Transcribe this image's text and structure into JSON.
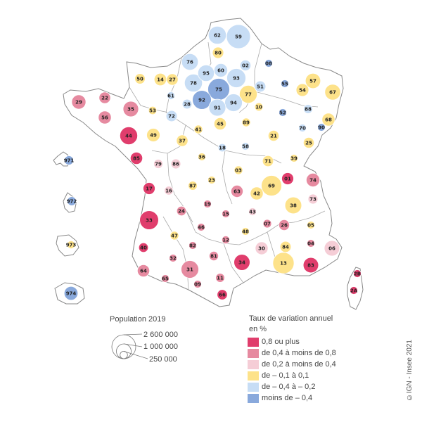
{
  "colors": {
    "c1": "#e03d6c",
    "c2": "#e68aa0",
    "c3": "#f5cdd6",
    "c4": "#fde28a",
    "c5": "#c7ddf5",
    "c6": "#89a9dc",
    "outline": "#888888"
  },
  "chart_data": {
    "type": "proportional-symbol-map",
    "departments": [
      {
        "code": "59",
        "cls": "c5",
        "pop": 2600000
      },
      {
        "code": "62",
        "cls": "c5",
        "pop": 1460000
      },
      {
        "code": "80",
        "cls": "c4",
        "pop": 570000
      },
      {
        "code": "76",
        "cls": "c5",
        "pop": 1250000
      },
      {
        "code": "02",
        "cls": "c5",
        "pop": 530000
      },
      {
        "code": "08",
        "cls": "c6",
        "pop": 270000
      },
      {
        "code": "60",
        "cls": "c5",
        "pop": 825000
      },
      {
        "code": "95",
        "cls": "c5",
        "pop": 1240000
      },
      {
        "code": "93",
        "cls": "c5",
        "pop": 1650000
      },
      {
        "code": "50",
        "cls": "c4",
        "pop": 495000
      },
      {
        "code": "14",
        "cls": "c4",
        "pop": 695000
      },
      {
        "code": "27",
        "cls": "c4",
        "pop": 600000
      },
      {
        "code": "78",
        "cls": "c5",
        "pop": 1450000
      },
      {
        "code": "75",
        "cls": "c6",
        "pop": 2170000
      },
      {
        "code": "77",
        "cls": "c4",
        "pop": 1420000
      },
      {
        "code": "51",
        "cls": "c5",
        "pop": 565000
      },
      {
        "code": "55",
        "cls": "c6",
        "pop": 185000
      },
      {
        "code": "57",
        "cls": "c4",
        "pop": 1045000
      },
      {
        "code": "67",
        "cls": "c4",
        "pop": 1130000
      },
      {
        "code": "29",
        "cls": "c2",
        "pop": 915000
      },
      {
        "code": "22",
        "cls": "c2",
        "pop": 600000
      },
      {
        "code": "35",
        "cls": "c2",
        "pop": 1080000
      },
      {
        "code": "61",
        "cls": "c5",
        "pop": 280000
      },
      {
        "code": "28",
        "cls": "c5",
        "pop": 430000
      },
      {
        "code": "92",
        "cls": "c6",
        "pop": 1625000
      },
      {
        "code": "91",
        "cls": "c5",
        "pop": 1300000
      },
      {
        "code": "94",
        "cls": "c5",
        "pop": 1400000
      },
      {
        "code": "10",
        "cls": "c4",
        "pop": 310000
      },
      {
        "code": "54",
        "cls": "c4",
        "pop": 735000
      },
      {
        "code": "52",
        "cls": "c6",
        "pop": 172000
      },
      {
        "code": "88",
        "cls": "c5",
        "pop": 365000
      },
      {
        "code": "68",
        "cls": "c4",
        "pop": 765000
      },
      {
        "code": "56",
        "cls": "c2",
        "pop": 760000
      },
      {
        "code": "53",
        "cls": "c4",
        "pop": 307000
      },
      {
        "code": "72",
        "cls": "c5",
        "pop": 566000
      },
      {
        "code": "45",
        "cls": "c4",
        "pop": 680000
      },
      {
        "code": "89",
        "cls": "c4",
        "pop": 335000
      },
      {
        "code": "21",
        "cls": "c4",
        "pop": 535000
      },
      {
        "code": "70",
        "cls": "c5",
        "pop": 235000
      },
      {
        "code": "90",
        "cls": "c6",
        "pop": 142000
      },
      {
        "code": "44",
        "cls": "c1",
        "pop": 1430000
      },
      {
        "code": "49",
        "cls": "c4",
        "pop": 818000
      },
      {
        "code": "41",
        "cls": "c4",
        "pop": 330000
      },
      {
        "code": "37",
        "cls": "c4",
        "pop": 610000
      },
      {
        "code": "18",
        "cls": "c5",
        "pop": 302000
      },
      {
        "code": "58",
        "cls": "c5",
        "pop": 204000
      },
      {
        "code": "25",
        "cls": "c4",
        "pop": 540000
      },
      {
        "code": "971",
        "cls": "c6",
        "pop": 384000
      },
      {
        "code": "85",
        "cls": "c1",
        "pop": 685000
      },
      {
        "code": "79",
        "cls": "c3",
        "pop": 375000
      },
      {
        "code": "86",
        "cls": "c3",
        "pop": 438000
      },
      {
        "code": "36",
        "cls": "c4",
        "pop": 220000
      },
      {
        "code": "71",
        "cls": "c4",
        "pop": 550000
      },
      {
        "code": "39",
        "cls": "c4",
        "pop": 260000
      },
      {
        "code": "03",
        "cls": "c4",
        "pop": 335000
      },
      {
        "code": "01",
        "cls": "c1",
        "pop": 655000
      },
      {
        "code": "74",
        "cls": "c2",
        "pop": 825000
      },
      {
        "code": "17",
        "cls": "c1",
        "pop": 650000
      },
      {
        "code": "16",
        "cls": "c3",
        "pop": 352000
      },
      {
        "code": "87",
        "cls": "c4",
        "pop": 372000
      },
      {
        "code": "23",
        "cls": "c4",
        "pop": 117000
      },
      {
        "code": "63",
        "cls": "c2",
        "pop": 662000
      },
      {
        "code": "42",
        "cls": "c4",
        "pop": 765000
      },
      {
        "code": "69",
        "cls": "c4",
        "pop": 1880000
      },
      {
        "code": "73",
        "cls": "c3",
        "pop": 435000
      },
      {
        "code": "972",
        "cls": "c6",
        "pop": 364000
      },
      {
        "code": "24",
        "cls": "c2",
        "pop": 413000
      },
      {
        "code": "19",
        "cls": "c2",
        "pop": 240000
      },
      {
        "code": "15",
        "cls": "c2",
        "pop": 144000
      },
      {
        "code": "43",
        "cls": "c3",
        "pop": 228000
      },
      {
        "code": "38",
        "cls": "c4",
        "pop": 1270000
      },
      {
        "code": "33",
        "cls": "c1",
        "pop": 1623000
      },
      {
        "code": "46",
        "cls": "c2",
        "pop": 174000
      },
      {
        "code": "48",
        "cls": "c4",
        "pop": 76000
      },
      {
        "code": "07",
        "cls": "c2",
        "pop": 328000
      },
      {
        "code": "26",
        "cls": "c2",
        "pop": 516000
      },
      {
        "code": "05",
        "cls": "c4",
        "pop": 141000
      },
      {
        "code": "47",
        "cls": "c4",
        "pop": 332000
      },
      {
        "code": "82",
        "cls": "c2",
        "pop": 259000
      },
      {
        "code": "12",
        "cls": "c2",
        "pop": 279000
      },
      {
        "code": "40",
        "cls": "c1",
        "pop": 413000
      },
      {
        "code": "973",
        "cls": "c4",
        "pop": 282000
      },
      {
        "code": "81",
        "cls": "c2",
        "pop": 389000
      },
      {
        "code": "30",
        "cls": "c3",
        "pop": 748000
      },
      {
        "code": "84",
        "cls": "c4",
        "pop": 561000
      },
      {
        "code": "04",
        "cls": "c2",
        "pop": 164000
      },
      {
        "code": "06",
        "cls": "c3",
        "pop": 1094000
      },
      {
        "code": "32",
        "cls": "c2",
        "pop": 191000
      },
      {
        "code": "31",
        "cls": "c2",
        "pop": 1400000
      },
      {
        "code": "34",
        "cls": "c1",
        "pop": 1176000
      },
      {
        "code": "13",
        "cls": "c4",
        "pop": 2043000
      },
      {
        "code": "83",
        "cls": "c1",
        "pop": 1076000
      },
      {
        "code": "64",
        "cls": "c2",
        "pop": 687000
      },
      {
        "code": "65",
        "cls": "c2",
        "pop": 229000
      },
      {
        "code": "09",
        "cls": "c2",
        "pop": 153000
      },
      {
        "code": "11",
        "cls": "c2",
        "pop": 373000
      },
      {
        "code": "66",
        "cls": "c1",
        "pop": 479000
      },
      {
        "code": "2B",
        "cls": "c1",
        "pop": 181000
      },
      {
        "code": "2A",
        "cls": "c1",
        "pop": 158000
      },
      {
        "code": "974",
        "cls": "c6",
        "pop": 861000
      }
    ]
  },
  "legend": {
    "size_title": "Population 2019",
    "sizes": [
      {
        "value": 2600000,
        "label": "2 600 000"
      },
      {
        "value": 1000000,
        "label": "1 000 000"
      },
      {
        "value": 250000,
        "label": "250 000"
      }
    ],
    "color_title_1": "Taux de variation annuel",
    "color_title_2": "en %",
    "classes": [
      {
        "key": "c1",
        "label": "0,8 ou plus"
      },
      {
        "key": "c2",
        "label": "de 0,4 à moins de 0,8"
      },
      {
        "key": "c3",
        "label": "de 0,2 à moins de 0,4"
      },
      {
        "key": "c4",
        "label": "de – 0,1 à 0,1"
      },
      {
        "key": "c5",
        "label": "de – 0,4 à  – 0,2"
      },
      {
        "key": "c6",
        "label": "moins de – 0,4"
      }
    ]
  },
  "credit": "©IGN - Insee 2021"
}
